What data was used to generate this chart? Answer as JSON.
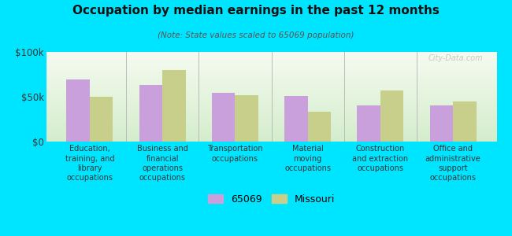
{
  "title": "Occupation by median earnings in the past 12 months",
  "subtitle": "(Note: State values scaled to 65069 population)",
  "categories": [
    "Education,\ntraining, and\nlibrary\noccupations",
    "Business and\nfinancial\noperations\noccupations",
    "Transportation\noccupations",
    "Material\nmoving\noccupations",
    "Construction\nand extraction\noccupations",
    "Office and\nadministrative\nsupport\noccupations"
  ],
  "values_65069": [
    69000,
    63000,
    54000,
    51000,
    40000,
    40000
  ],
  "values_missouri": [
    50000,
    80000,
    52000,
    33000,
    57000,
    45000
  ],
  "color_65069": "#c9a0dc",
  "color_missouri": "#c8cf8a",
  "background_fig": "#00e5ff",
  "gradient_top": "#d4edcc",
  "gradient_bottom": "#f5fbf0",
  "ylim": [
    0,
    100000
  ],
  "ytick_labels": [
    "$0",
    "$50k",
    "$100k"
  ],
  "legend_label_65069": "65069",
  "legend_label_missouri": "Missouri",
  "watermark": "City-Data.com",
  "bar_width": 0.32
}
